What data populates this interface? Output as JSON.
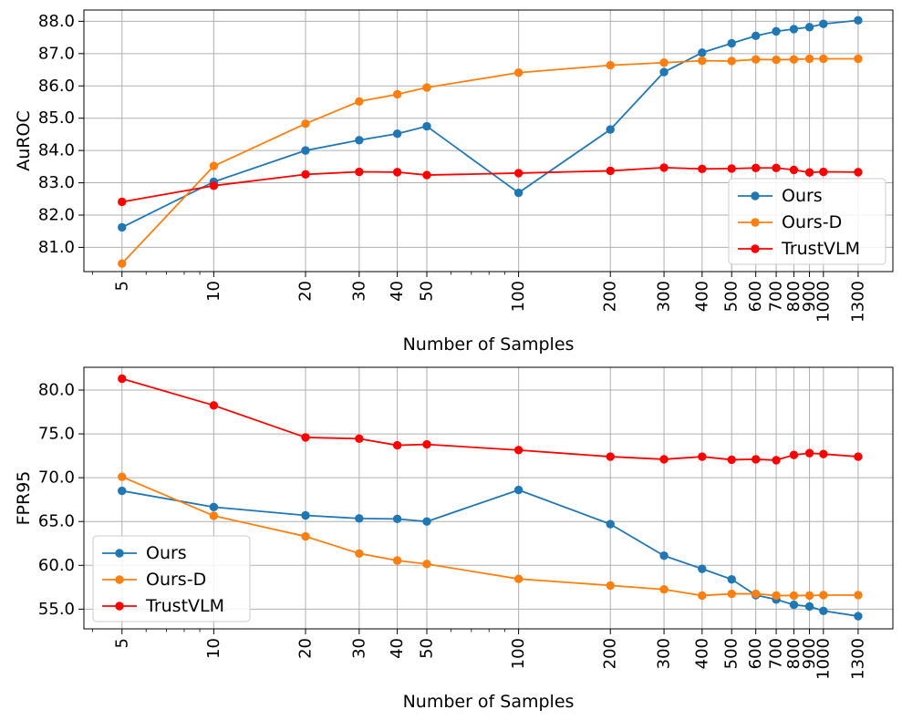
{
  "chart_data": [
    {
      "type": "line",
      "xscale": "log",
      "x": [
        5,
        10,
        20,
        30,
        40,
        50,
        100,
        200,
        300,
        400,
        500,
        600,
        700,
        800,
        900,
        1000,
        1300
      ],
      "xticklabels": [
        "5",
        "10",
        "20",
        "30",
        "40",
        "50",
        "100",
        "200",
        "300",
        "400",
        "500",
        "600",
        "700",
        "800",
        "900",
        "1000",
        "1300"
      ],
      "xlabel": "Number of Samples",
      "ylabel": "AuROC",
      "ylim": [
        80.25,
        88.35
      ],
      "yticks": [
        81.0,
        82.0,
        83.0,
        84.0,
        85.0,
        86.0,
        87.0,
        88.0
      ],
      "yticklabels": [
        "81.0",
        "82.0",
        "83.0",
        "84.0",
        "85.0",
        "86.0",
        "87.0",
        "88.0"
      ],
      "grid": true,
      "legend_position": "lower-right",
      "series": [
        {
          "name": "Ours",
          "color": "#1f77b4",
          "values": [
            81.62,
            83.03,
            84.0,
            84.32,
            84.52,
            84.75,
            82.69,
            84.65,
            86.43,
            87.03,
            87.32,
            87.55,
            87.69,
            87.76,
            87.82,
            87.92,
            88.03
          ]
        },
        {
          "name": "Ours-D",
          "color": "#ff7f0e",
          "values": [
            80.5,
            83.52,
            84.83,
            85.52,
            85.74,
            85.95,
            86.41,
            86.64,
            86.72,
            86.78,
            86.77,
            86.82,
            86.81,
            86.82,
            86.84,
            86.84,
            86.84
          ]
        },
        {
          "name": "TrustVLM",
          "color": "#ff0000",
          "values": [
            82.41,
            82.91,
            83.26,
            83.34,
            83.33,
            83.24,
            83.3,
            83.37,
            83.47,
            83.43,
            83.44,
            83.46,
            83.46,
            83.4,
            83.32,
            83.34,
            83.33
          ]
        }
      ]
    },
    {
      "type": "line",
      "xscale": "log",
      "x": [
        5,
        10,
        20,
        30,
        40,
        50,
        100,
        200,
        300,
        400,
        500,
        600,
        700,
        800,
        900,
        1000,
        1300
      ],
      "xticklabels": [
        "5",
        "10",
        "20",
        "30",
        "40",
        "50",
        "100",
        "200",
        "300",
        "400",
        "500",
        "600",
        "700",
        "800",
        "900",
        "1000",
        "1300"
      ],
      "xlabel": "Number of Samples",
      "ylabel": "FPR95",
      "ylim": [
        52.75,
        82.6
      ],
      "yticks": [
        55.0,
        60.0,
        65.0,
        70.0,
        75.0,
        80.0
      ],
      "yticklabels": [
        "55.0",
        "60.0",
        "65.0",
        "70.0",
        "75.0",
        "80.0"
      ],
      "grid": true,
      "legend_position": "lower-left",
      "series": [
        {
          "name": "Ours",
          "color": "#1f77b4",
          "values": [
            68.5,
            66.65,
            65.7,
            65.35,
            65.3,
            65.0,
            68.6,
            64.7,
            61.1,
            59.6,
            58.4,
            56.6,
            56.1,
            55.5,
            55.3,
            54.8,
            54.2
          ]
        },
        {
          "name": "Ours-D",
          "color": "#ff7f0e",
          "values": [
            70.1,
            65.65,
            63.3,
            61.35,
            60.55,
            60.15,
            58.45,
            57.7,
            57.25,
            56.55,
            56.75,
            56.75,
            56.55,
            56.55,
            56.55,
            56.6,
            56.6
          ]
        },
        {
          "name": "TrustVLM",
          "color": "#ff0000",
          "values": [
            81.3,
            78.25,
            74.6,
            74.45,
            73.7,
            73.8,
            73.15,
            72.4,
            72.1,
            72.4,
            72.05,
            72.1,
            72.0,
            72.6,
            72.8,
            72.7,
            72.4
          ]
        }
      ]
    }
  ]
}
